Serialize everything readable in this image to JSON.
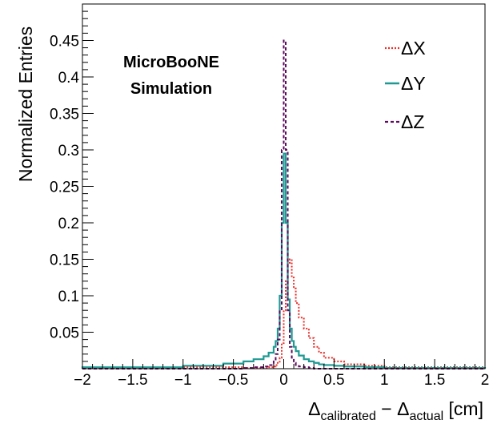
{
  "chart_data": {
    "type": "step-histogram",
    "annotation": [
      "MicroBooNE",
      "Simulation"
    ],
    "xlabel": {
      "prefix": "Δ",
      "sub1": "calibrated",
      "minus": " − Δ",
      "sub2": "actual",
      "suffix": " [cm]"
    },
    "ylabel": "Normalized Entries",
    "xlim": [
      -2,
      2
    ],
    "ylim": [
      0,
      0.5
    ],
    "x_ticks": [
      "−2",
      "−1.5",
      "−1",
      "−0.5",
      "0",
      "0.5",
      "1",
      "1.5",
      "2"
    ],
    "x_tick_values": [
      -2,
      -1.5,
      -1,
      -0.5,
      0,
      0.5,
      1,
      1.5,
      2
    ],
    "y_ticks": [
      "0.05",
      "0.1",
      "0.15",
      "0.2",
      "0.25",
      "0.3",
      "0.35",
      "0.4",
      "0.45"
    ],
    "y_tick_values": [
      0.05,
      0.1,
      0.15,
      0.2,
      0.25,
      0.3,
      0.35,
      0.4,
      0.45
    ],
    "bin_edges": [
      -2.0,
      -1.0,
      -0.6,
      -0.4,
      -0.3,
      -0.2,
      -0.15,
      -0.1,
      -0.08,
      -0.06,
      -0.04,
      -0.02,
      0.0,
      0.02,
      0.04,
      0.06,
      0.08,
      0.1,
      0.12,
      0.15,
      0.2,
      0.25,
      0.3,
      0.35,
      0.4,
      0.5,
      0.6,
      0.8,
      1.0,
      2.0
    ],
    "series": [
      {
        "name": "ΔX",
        "color": "#e8302a",
        "style": "dotted",
        "values": [
          0.001,
          0.002,
          0.002,
          0.001,
          0.001,
          0.001,
          0.002,
          0.003,
          0.005,
          0.008,
          0.015,
          0.035,
          0.08,
          0.12,
          0.145,
          0.15,
          0.125,
          0.11,
          0.09,
          0.07,
          0.055,
          0.042,
          0.03,
          0.022,
          0.015,
          0.01,
          0.006,
          0.004,
          0.002
        ]
      },
      {
        "name": "ΔY",
        "color": "#1f9a93",
        "style": "solid",
        "values": [
          0.002,
          0.004,
          0.007,
          0.01,
          0.013,
          0.017,
          0.022,
          0.03,
          0.038,
          0.055,
          0.1,
          0.2,
          0.295,
          0.2,
          0.095,
          0.055,
          0.038,
          0.03,
          0.024,
          0.018,
          0.013,
          0.01,
          0.008,
          0.006,
          0.005,
          0.004,
          0.003,
          0.002,
          0.001
        ]
      },
      {
        "name": "ΔZ",
        "color": "#5c0a5e",
        "style": "dashed",
        "values": [
          0.0,
          0.0,
          0.0,
          0.001,
          0.002,
          0.003,
          0.005,
          0.01,
          0.02,
          0.04,
          0.08,
          0.3,
          0.45,
          0.3,
          0.08,
          0.03,
          0.015,
          0.008,
          0.005,
          0.003,
          0.002,
          0.001,
          0.0,
          0.0,
          0.0,
          0.0,
          0.0,
          0.0,
          0.0
        ]
      }
    ],
    "legend": "top-right",
    "grid": false
  }
}
